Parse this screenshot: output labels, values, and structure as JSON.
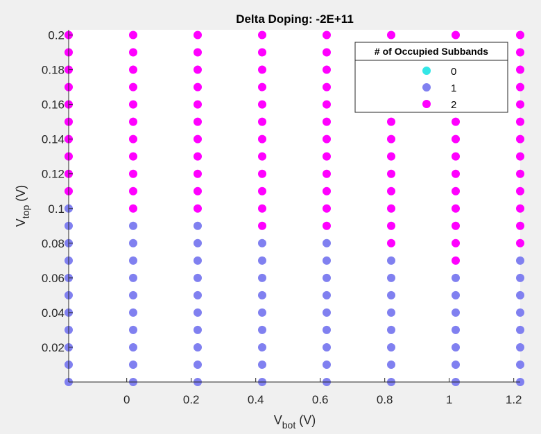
{
  "chart_data": {
    "type": "scatter",
    "title": "Delta Doping: -2E+11",
    "xlabel": {
      "main": "V",
      "sub": "bot",
      "unit": " (V)"
    },
    "ylabel": {
      "main": "V",
      "sub": "top",
      "unit": " (V)"
    },
    "xlim": [
      -0.18,
      1.22
    ],
    "ylim": [
      0.0,
      0.203
    ],
    "xticks": [
      0,
      0.2,
      0.4,
      0.6,
      0.8,
      1,
      1.2
    ],
    "xtick_labels": [
      "0",
      "0.2",
      "0.4",
      "0.6",
      "0.8",
      "1",
      "1.2"
    ],
    "yticks": [
      0.02,
      0.04,
      0.06,
      0.08,
      0.1,
      0.12,
      0.14,
      0.16,
      0.18,
      0.2
    ],
    "ytick_labels": [
      "0.02",
      "0.04",
      "0.06",
      "0.08",
      "0.1",
      "0.12",
      "0.14",
      "0.16",
      "0.18",
      "0.2"
    ],
    "grid": false,
    "legend": {
      "title": "# of Occupied Subbands",
      "placement": "top-right",
      "entries": [
        {
          "label": "0",
          "color": "#33e6e6"
        },
        {
          "label": "1",
          "color": "#8080f0"
        },
        {
          "label": "2",
          "color": "#ff00ff"
        }
      ]
    },
    "columns": [
      {
        "x": -0.18,
        "threshold": 0.107
      },
      {
        "x": 0.02,
        "threshold": 0.097
      },
      {
        "x": 0.22,
        "threshold": 0.097
      },
      {
        "x": 0.42,
        "threshold": 0.087
      },
      {
        "x": 0.62,
        "threshold": 0.087
      },
      {
        "x": 0.82,
        "threshold": 0.077
      },
      {
        "x": 1.02,
        "threshold": 0.067
      },
      {
        "x": 1.22,
        "threshold": 0.077
      }
    ],
    "y_values": [
      0.0,
      0.01,
      0.02,
      0.03,
      0.04,
      0.05,
      0.06,
      0.07,
      0.08,
      0.09,
      0.1,
      0.11,
      0.12,
      0.13,
      0.14,
      0.15,
      0.16,
      0.17,
      0.18,
      0.19,
      0.2
    ],
    "series_rule": "points with y below the column threshold have 1 occupied subband; points at or above have 2"
  }
}
